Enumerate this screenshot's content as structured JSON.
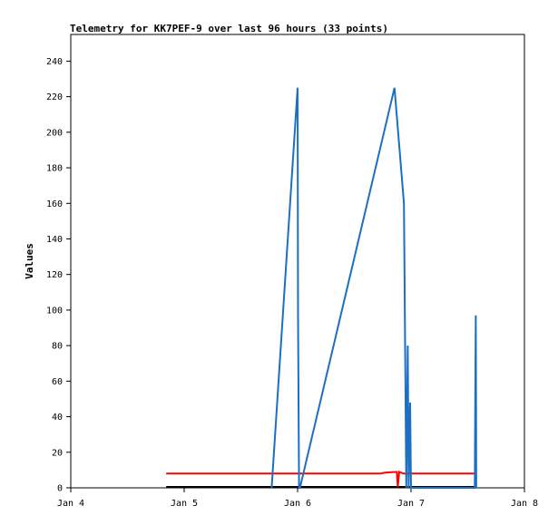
{
  "chart_data": {
    "type": "line",
    "title": "Telemetry for KK7PEF-9 over last 96 hours (33 points)",
    "xlabel": "",
    "ylabel": "Values",
    "x_ticks": [
      "Jan 4",
      "Jan 5",
      "Jan 6",
      "Jan 7",
      "Jan 8"
    ],
    "y_ticks": [
      0,
      20,
      40,
      60,
      80,
      100,
      120,
      140,
      160,
      180,
      200,
      220,
      240
    ],
    "xlim_hours": [
      0,
      96
    ],
    "ylim": [
      0,
      255
    ],
    "grid": false,
    "series": [
      {
        "color": "#000000",
        "x_hours": [
          20.2,
          23.0,
          48.0,
          59.5,
          65.0,
          72.0,
          85.5
        ],
        "values": [
          0.5,
          0.5,
          0.5,
          0.5,
          0.5,
          0.5,
          0.5
        ]
      },
      {
        "color": "#ff0000",
        "x_hours": [
          20.2,
          48.0,
          65.5,
          66.5,
          69.0,
          69.2,
          69.5,
          70.4,
          72.0,
          84.0,
          85.5
        ],
        "values": [
          8,
          8,
          8,
          8.5,
          9,
          0.5,
          9,
          8,
          8,
          8,
          8
        ]
      },
      {
        "color": "#1c6fc1",
        "x_hours": [
          42.5,
          48.0,
          48.1,
          48.3,
          48.5,
          68.5,
          70.5,
          71.0,
          71.3,
          71.5,
          71.8,
          72.0,
          85.5,
          85.6,
          85.7,
          85.8
        ],
        "values": [
          0,
          225,
          95,
          0,
          0,
          225,
          160,
          0,
          80,
          0,
          48,
          0,
          0,
          48,
          97,
          0
        ]
      }
    ]
  }
}
